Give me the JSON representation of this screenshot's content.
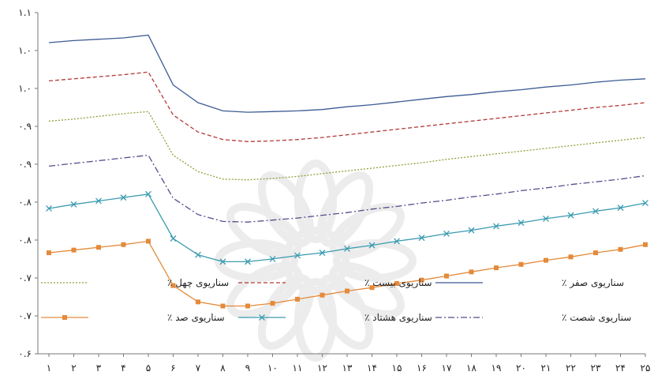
{
  "chart_data": {
    "type": "line",
    "title": "",
    "xlabel": "",
    "ylabel": "",
    "categories": [
      "۱",
      "۲",
      "۳",
      "۴",
      "۵",
      "۶",
      "۷",
      "۸",
      "۹",
      "۱۰",
      "۱۱",
      "۱۲",
      "۱۳",
      "۱۴",
      "۱۵",
      "۱۶",
      "۱۷",
      "۱۸",
      "۱۹",
      "۲۰",
      "۲۱",
      "۲۲",
      "۲۳",
      "۲۴",
      "۲۵"
    ],
    "y_ticks": [
      "۰.۶",
      "۰.۷",
      "۰.۷",
      "۰.۸",
      "۰.۸",
      "۰.۹",
      "۰.۹",
      "۱.۰",
      "۱.۰",
      "۱.۱"
    ],
    "ylim": [
      0.6,
      1.1
    ],
    "grid": false,
    "legend_position": "inside-bottom",
    "series": [
      {
        "name": "سناریوی صفر ٪",
        "color": "#3b5b94",
        "dash": "solid",
        "marker": "none",
        "values": [
          1.056,
          1.059,
          1.061,
          1.063,
          1.067,
          0.994,
          0.968,
          0.956,
          0.954,
          0.955,
          0.956,
          0.958,
          0.962,
          0.965,
          0.969,
          0.973,
          0.977,
          0.98,
          0.984,
          0.987,
          0.991,
          0.994,
          0.998,
          1.001,
          1.003
        ]
      },
      {
        "name": "سناریوی بیست ٪",
        "color": "#b33a3a",
        "dash": "dashed",
        "marker": "none",
        "values": [
          1.0,
          1.003,
          1.006,
          1.009,
          1.013,
          0.95,
          0.925,
          0.914,
          0.911,
          0.912,
          0.914,
          0.917,
          0.921,
          0.925,
          0.929,
          0.933,
          0.937,
          0.941,
          0.945,
          0.949,
          0.953,
          0.957,
          0.961,
          0.964,
          0.968
        ]
      },
      {
        "name": "سناریوی چهل ٪",
        "color": "#8aa33c",
        "dash": "dotted",
        "marker": "none",
        "values": [
          0.941,
          0.944,
          0.948,
          0.952,
          0.955,
          0.891,
          0.867,
          0.856,
          0.855,
          0.857,
          0.86,
          0.864,
          0.868,
          0.872,
          0.876,
          0.88,
          0.885,
          0.889,
          0.893,
          0.897,
          0.901,
          0.905,
          0.909,
          0.913,
          0.917
        ]
      },
      {
        "name": "سناریوی شصت ٪",
        "color": "#5b4a8a",
        "dash": "dashdot",
        "marker": "none",
        "values": [
          0.875,
          0.879,
          0.883,
          0.887,
          0.891,
          0.828,
          0.804,
          0.794,
          0.793,
          0.796,
          0.799,
          0.803,
          0.807,
          0.812,
          0.816,
          0.821,
          0.825,
          0.83,
          0.834,
          0.839,
          0.843,
          0.848,
          0.852,
          0.856,
          0.861
        ]
      },
      {
        "name": "سناریوی هشتاد ٪",
        "color": "#3a9bb0",
        "dash": "solid",
        "marker": "x",
        "values": [
          0.813,
          0.819,
          0.824,
          0.829,
          0.834,
          0.769,
          0.745,
          0.735,
          0.735,
          0.739,
          0.744,
          0.748,
          0.754,
          0.759,
          0.765,
          0.77,
          0.776,
          0.781,
          0.787,
          0.792,
          0.798,
          0.803,
          0.809,
          0.814,
          0.821
        ]
      },
      {
        "name": "سناریوی صد ٪",
        "color": "#e48a3a",
        "dash": "solid",
        "marker": "square",
        "values": [
          0.748,
          0.752,
          0.756,
          0.76,
          0.765,
          0.7,
          0.676,
          0.67,
          0.67,
          0.674,
          0.68,
          0.686,
          0.692,
          0.697,
          0.703,
          0.708,
          0.714,
          0.72,
          0.726,
          0.731,
          0.737,
          0.742,
          0.748,
          0.753,
          0.76
        ]
      }
    ]
  }
}
